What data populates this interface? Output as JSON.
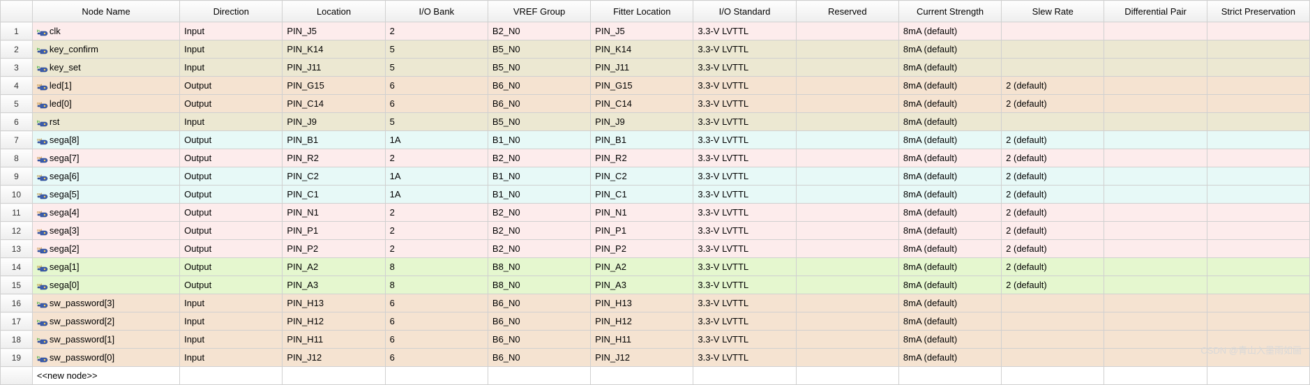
{
  "columns": [
    {
      "key": "node",
      "label": "Node Name"
    },
    {
      "key": "dir",
      "label": "Direction"
    },
    {
      "key": "loc",
      "label": "Location"
    },
    {
      "key": "bank",
      "label": "I/O Bank"
    },
    {
      "key": "vref",
      "label": "VREF Group"
    },
    {
      "key": "fit",
      "label": "Fitter Location"
    },
    {
      "key": "std",
      "label": "I/O Standard"
    },
    {
      "key": "res",
      "label": "Reserved"
    },
    {
      "key": "cur",
      "label": "Current Strength"
    },
    {
      "key": "slew",
      "label": "Slew Rate"
    },
    {
      "key": "diff",
      "label": "Differential Pair"
    },
    {
      "key": "strict",
      "label": "Strict Preservation"
    }
  ],
  "row_colors": {
    "pink": "#fdecec",
    "beige": "#ece8d2",
    "peach": "#f5e3d1",
    "cyan": "#e7f9f7",
    "green": "#e5f7cf",
    "white": "#ffffff"
  },
  "icons": {
    "in": {
      "badge": "in",
      "badge_color": "#009900",
      "fill": "#3b5cad"
    },
    "out": {
      "badge": "out",
      "badge_color": "#b07000",
      "fill": "#3b5cad"
    }
  },
  "new_node_label": "<<new node>>",
  "watermark": "CSDN @青山入墨雨如画",
  "rows": [
    {
      "n": 1,
      "icon": "in",
      "color": "pink",
      "node": "clk",
      "dir": "Input",
      "loc": "PIN_J5",
      "bank": "2",
      "vref": "B2_N0",
      "fit": "PIN_J5",
      "std": "3.3-V LVTTL",
      "res": "",
      "cur": "8mA (default)",
      "slew": "",
      "diff": "",
      "strict": ""
    },
    {
      "n": 2,
      "icon": "in",
      "color": "beige",
      "node": "key_confirm",
      "dir": "Input",
      "loc": "PIN_K14",
      "bank": "5",
      "vref": "B5_N0",
      "fit": "PIN_K14",
      "std": "3.3-V LVTTL",
      "res": "",
      "cur": "8mA (default)",
      "slew": "",
      "diff": "",
      "strict": ""
    },
    {
      "n": 3,
      "icon": "in",
      "color": "beige",
      "node": "key_set",
      "dir": "Input",
      "loc": "PIN_J11",
      "bank": "5",
      "vref": "B5_N0",
      "fit": "PIN_J11",
      "std": "3.3-V LVTTL",
      "res": "",
      "cur": "8mA (default)",
      "slew": "",
      "diff": "",
      "strict": ""
    },
    {
      "n": 4,
      "icon": "out",
      "color": "peach",
      "node": "led[1]",
      "dir": "Output",
      "loc": "PIN_G15",
      "bank": "6",
      "vref": "B6_N0",
      "fit": "PIN_G15",
      "std": "3.3-V LVTTL",
      "res": "",
      "cur": "8mA (default)",
      "slew": "2 (default)",
      "diff": "",
      "strict": ""
    },
    {
      "n": 5,
      "icon": "out",
      "color": "peach",
      "node": "led[0]",
      "dir": "Output",
      "loc": "PIN_C14",
      "bank": "6",
      "vref": "B6_N0",
      "fit": "PIN_C14",
      "std": "3.3-V LVTTL",
      "res": "",
      "cur": "8mA (default)",
      "slew": "2 (default)",
      "diff": "",
      "strict": ""
    },
    {
      "n": 6,
      "icon": "in",
      "color": "beige",
      "node": "rst",
      "dir": "Input",
      "loc": "PIN_J9",
      "bank": "5",
      "vref": "B5_N0",
      "fit": "PIN_J9",
      "std": "3.3-V LVTTL",
      "res": "",
      "cur": "8mA (default)",
      "slew": "",
      "diff": "",
      "strict": ""
    },
    {
      "n": 7,
      "icon": "out",
      "color": "cyan",
      "node": "sega[8]",
      "dir": "Output",
      "loc": "PIN_B1",
      "bank": "1A",
      "vref": "B1_N0",
      "fit": "PIN_B1",
      "std": "3.3-V LVTTL",
      "res": "",
      "cur": "8mA (default)",
      "slew": "2 (default)",
      "diff": "",
      "strict": ""
    },
    {
      "n": 8,
      "icon": "out",
      "color": "pink",
      "node": "sega[7]",
      "dir": "Output",
      "loc": "PIN_R2",
      "bank": "2",
      "vref": "B2_N0",
      "fit": "PIN_R2",
      "std": "3.3-V LVTTL",
      "res": "",
      "cur": "8mA (default)",
      "slew": "2 (default)",
      "diff": "",
      "strict": ""
    },
    {
      "n": 9,
      "icon": "out",
      "color": "cyan",
      "node": "sega[6]",
      "dir": "Output",
      "loc": "PIN_C2",
      "bank": "1A",
      "vref": "B1_N0",
      "fit": "PIN_C2",
      "std": "3.3-V LVTTL",
      "res": "",
      "cur": "8mA (default)",
      "slew": "2 (default)",
      "diff": "",
      "strict": ""
    },
    {
      "n": 10,
      "icon": "out",
      "color": "cyan",
      "node": "sega[5]",
      "dir": "Output",
      "loc": "PIN_C1",
      "bank": "1A",
      "vref": "B1_N0",
      "fit": "PIN_C1",
      "std": "3.3-V LVTTL",
      "res": "",
      "cur": "8mA (default)",
      "slew": "2 (default)",
      "diff": "",
      "strict": ""
    },
    {
      "n": 11,
      "icon": "out",
      "color": "pink",
      "node": "sega[4]",
      "dir": "Output",
      "loc": "PIN_N1",
      "bank": "2",
      "vref": "B2_N0",
      "fit": "PIN_N1",
      "std": "3.3-V LVTTL",
      "res": "",
      "cur": "8mA (default)",
      "slew": "2 (default)",
      "diff": "",
      "strict": ""
    },
    {
      "n": 12,
      "icon": "out",
      "color": "pink",
      "node": "sega[3]",
      "dir": "Output",
      "loc": "PIN_P1",
      "bank": "2",
      "vref": "B2_N0",
      "fit": "PIN_P1",
      "std": "3.3-V LVTTL",
      "res": "",
      "cur": "8mA (default)",
      "slew": "2 (default)",
      "diff": "",
      "strict": ""
    },
    {
      "n": 13,
      "icon": "out",
      "color": "pink",
      "node": "sega[2]",
      "dir": "Output",
      "loc": "PIN_P2",
      "bank": "2",
      "vref": "B2_N0",
      "fit": "PIN_P2",
      "std": "3.3-V LVTTL",
      "res": "",
      "cur": "8mA (default)",
      "slew": "2 (default)",
      "diff": "",
      "strict": ""
    },
    {
      "n": 14,
      "icon": "out",
      "color": "green",
      "node": "sega[1]",
      "dir": "Output",
      "loc": "PIN_A2",
      "bank": "8",
      "vref": "B8_N0",
      "fit": "PIN_A2",
      "std": "3.3-V LVTTL",
      "res": "",
      "cur": "8mA (default)",
      "slew": "2 (default)",
      "diff": "",
      "strict": ""
    },
    {
      "n": 15,
      "icon": "out",
      "color": "green",
      "node": "sega[0]",
      "dir": "Output",
      "loc": "PIN_A3",
      "bank": "8",
      "vref": "B8_N0",
      "fit": "PIN_A3",
      "std": "3.3-V LVTTL",
      "res": "",
      "cur": "8mA (default)",
      "slew": "2 (default)",
      "diff": "",
      "strict": ""
    },
    {
      "n": 16,
      "icon": "in",
      "color": "peach",
      "node": "sw_password[3]",
      "dir": "Input",
      "loc": "PIN_H13",
      "bank": "6",
      "vref": "B6_N0",
      "fit": "PIN_H13",
      "std": "3.3-V LVTTL",
      "res": "",
      "cur": "8mA (default)",
      "slew": "",
      "diff": "",
      "strict": ""
    },
    {
      "n": 17,
      "icon": "in",
      "color": "peach",
      "node": "sw_password[2]",
      "dir": "Input",
      "loc": "PIN_H12",
      "bank": "6",
      "vref": "B6_N0",
      "fit": "PIN_H12",
      "std": "3.3-V LVTTL",
      "res": "",
      "cur": "8mA (default)",
      "slew": "",
      "diff": "",
      "strict": ""
    },
    {
      "n": 18,
      "icon": "in",
      "color": "peach",
      "node": "sw_password[1]",
      "dir": "Input",
      "loc": "PIN_H11",
      "bank": "6",
      "vref": "B6_N0",
      "fit": "PIN_H11",
      "std": "3.3-V LVTTL",
      "res": "",
      "cur": "8mA (default)",
      "slew": "",
      "diff": "",
      "strict": ""
    },
    {
      "n": 19,
      "icon": "in",
      "color": "peach",
      "node": "sw_password[0]",
      "dir": "Input",
      "loc": "PIN_J12",
      "bank": "6",
      "vref": "B6_N0",
      "fit": "PIN_J12",
      "std": "3.3-V LVTTL",
      "res": "",
      "cur": "8mA (default)",
      "slew": "",
      "diff": "",
      "strict": ""
    }
  ]
}
